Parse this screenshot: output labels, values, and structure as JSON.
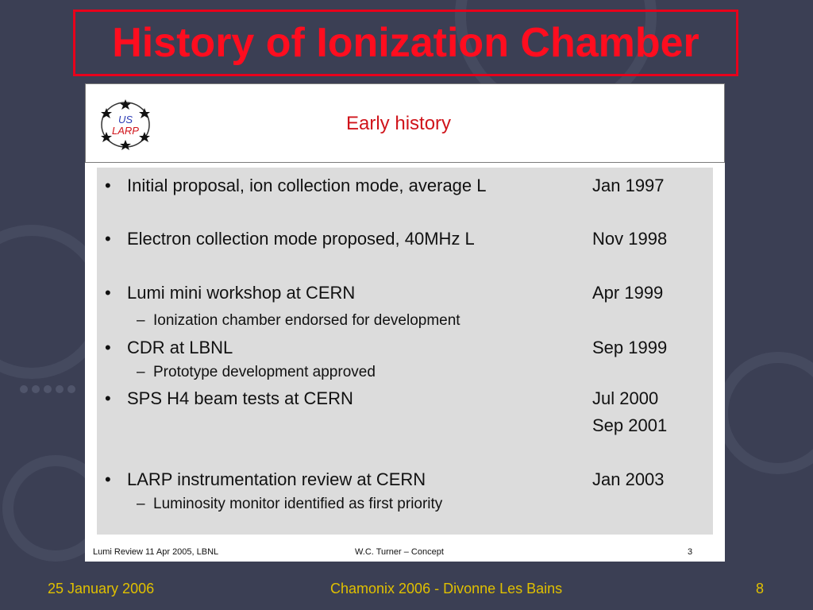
{
  "colors": {
    "background": "#3b3f54",
    "title": "#ff0d1f",
    "title_border": "#e8001b",
    "inner_title": "#d0141b",
    "footer": "#e0c000",
    "panel": "#dcdcdc"
  },
  "slide": {
    "title": "History of Ionization Chamber"
  },
  "embedded_slide": {
    "logo": {
      "line1": "US",
      "line2": "LARP",
      "icon": "star-ring-logo-icon"
    },
    "title": "Early history",
    "items": [
      {
        "text": "Initial proposal, ion collection mode, average L",
        "date": "Jan 1997"
      },
      {
        "text": "Electron collection mode proposed, 40MHz L",
        "date": "Nov 1998"
      },
      {
        "text": "Lumi mini workshop at CERN",
        "date": "Apr 1999",
        "sub": "Ionization chamber endorsed for development"
      },
      {
        "text": "CDR at LBNL",
        "date": "Sep 1999",
        "sub": "Prototype development approved"
      },
      {
        "text": "SPS H4 beam tests at CERN",
        "date": "Jul 2000",
        "date2": "Sep 2001"
      },
      {
        "text": "LARP instrumentation review at CERN",
        "date": "Jan 2003",
        "sub": "Luminosity monitor identified as first priority"
      }
    ],
    "bullet": "•",
    "dash": "–",
    "footer": {
      "left": "Lumi Review 11 Apr 2005, LBNL",
      "center": "W.C. Turner – Concept",
      "right": "3"
    }
  },
  "footer": {
    "date": "25 January 2006",
    "event": "Chamonix 2006 - Divonne Les Bains",
    "page": "8"
  }
}
